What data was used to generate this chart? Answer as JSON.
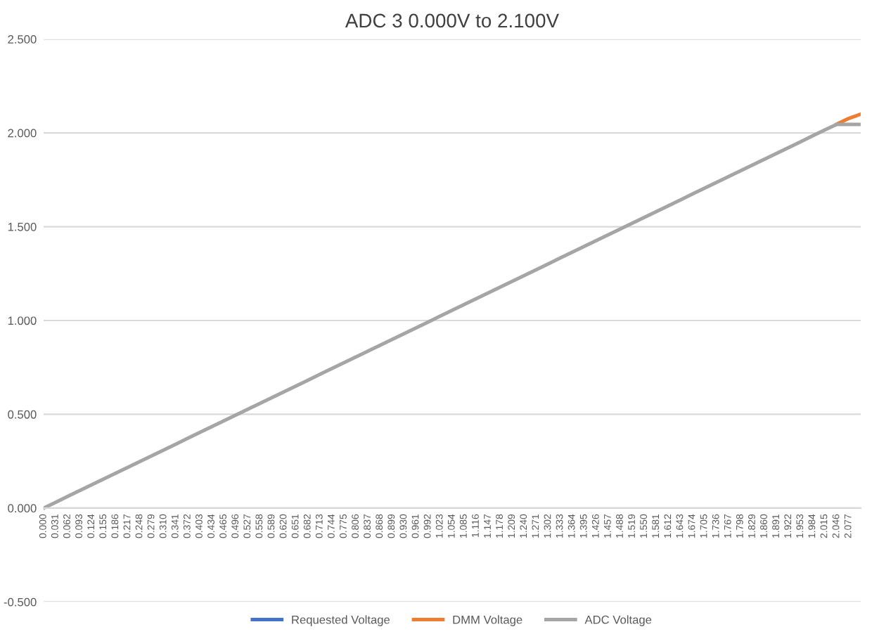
{
  "chart_data": {
    "type": "line",
    "title": "ADC 3 0.000V to 2.100V",
    "categories": [
      "0.000",
      "0.031",
      "0.062",
      "0.093",
      "0.124",
      "0.155",
      "0.186",
      "0.217",
      "0.248",
      "0.279",
      "0.310",
      "0.341",
      "0.372",
      "0.403",
      "0.434",
      "0.465",
      "0.496",
      "0.527",
      "0.558",
      "0.589",
      "0.620",
      "0.651",
      "0.682",
      "0.713",
      "0.744",
      "0.775",
      "0.806",
      "0.837",
      "0.868",
      "0.899",
      "0.930",
      "0.961",
      "0.992",
      "1.023",
      "1.054",
      "1.085",
      "1.116",
      "1.147",
      "1.178",
      "1.209",
      "1.240",
      "1.271",
      "1.302",
      "1.333",
      "1.364",
      "1.395",
      "1.426",
      "1.457",
      "1.488",
      "1.519",
      "1.550",
      "1.581",
      "1.612",
      "1.643",
      "1.674",
      "1.705",
      "1.736",
      "1.767",
      "1.798",
      "1.829",
      "1.860",
      "1.891",
      "1.922",
      "1.953",
      "1.984",
      "2.015",
      "2.046",
      "2.077",
      null
    ],
    "series": [
      {
        "name": "Requested Voltage",
        "color": "#4472c4",
        "values": [
          null,
          null,
          null,
          null,
          null,
          null,
          null,
          null,
          null,
          null,
          null,
          null,
          null,
          null,
          null,
          null,
          null,
          null,
          null,
          null,
          null,
          null,
          null,
          null,
          null,
          null,
          null,
          null,
          null,
          null,
          null,
          null,
          null,
          null,
          null,
          null,
          null,
          null,
          null,
          null,
          null,
          null,
          null,
          null,
          null,
          null,
          null,
          null,
          null,
          null,
          null,
          null,
          null,
          null,
          null,
          null,
          null,
          null,
          null,
          null,
          null,
          null,
          null,
          null,
          null,
          null,
          null,
          null,
          null
        ]
      },
      {
        "name": "DMM Voltage",
        "color": "#ed7d31",
        "values": [
          null,
          null,
          null,
          null,
          null,
          null,
          null,
          null,
          null,
          null,
          null,
          null,
          null,
          null,
          null,
          null,
          null,
          null,
          null,
          null,
          null,
          null,
          null,
          null,
          null,
          null,
          null,
          null,
          null,
          null,
          null,
          null,
          null,
          null,
          null,
          null,
          null,
          null,
          null,
          null,
          null,
          null,
          null,
          null,
          null,
          null,
          null,
          null,
          null,
          null,
          null,
          null,
          null,
          null,
          null,
          null,
          null,
          null,
          null,
          null,
          null,
          null,
          null,
          null,
          null,
          null,
          2.046,
          2.077,
          2.1
        ]
      },
      {
        "name": "ADC Voltage",
        "color": "#a5a5a5",
        "values": [
          0.0,
          0.031,
          0.062,
          0.093,
          0.124,
          0.155,
          0.186,
          0.217,
          0.248,
          0.279,
          0.31,
          0.341,
          0.372,
          0.403,
          0.434,
          0.465,
          0.496,
          0.527,
          0.558,
          0.589,
          0.62,
          0.651,
          0.682,
          0.713,
          0.744,
          0.775,
          0.806,
          0.837,
          0.868,
          0.899,
          0.93,
          0.961,
          0.992,
          1.023,
          1.054,
          1.085,
          1.116,
          1.147,
          1.178,
          1.209,
          1.24,
          1.271,
          1.302,
          1.333,
          1.364,
          1.395,
          1.426,
          1.457,
          1.488,
          1.519,
          1.55,
          1.581,
          1.612,
          1.643,
          1.674,
          1.705,
          1.736,
          1.767,
          1.798,
          1.829,
          1.86,
          1.891,
          1.922,
          1.953,
          1.984,
          2.015,
          2.045,
          2.045,
          2.045
        ]
      }
    ],
    "ylim": [
      -0.5,
      2.5
    ],
    "yticks": [
      {
        "value": -0.5,
        "label": "-0.500"
      },
      {
        "value": 0,
        "label": "0.000"
      },
      {
        "value": 0.5,
        "label": "0.500"
      },
      {
        "value": 1,
        "label": "1.000"
      },
      {
        "value": 1.5,
        "label": "1.500"
      },
      {
        "value": 2,
        "label": "2.000"
      },
      {
        "value": 2.5,
        "label": "2.500"
      }
    ],
    "grid": "y",
    "legend": "bottom",
    "marker": "none",
    "line_style": "solid"
  }
}
